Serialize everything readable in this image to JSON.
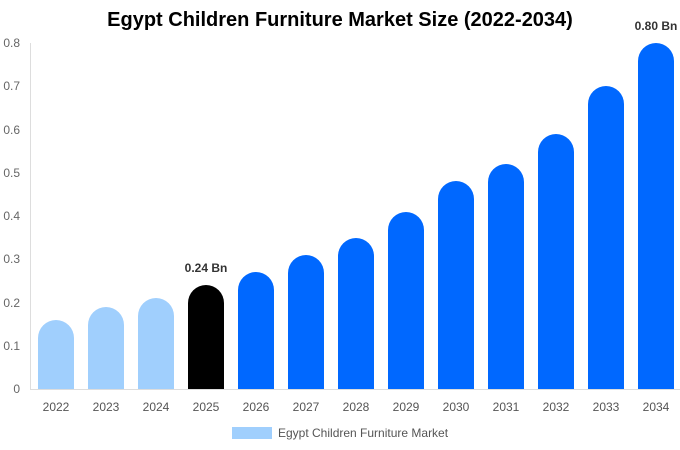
{
  "chart_data": {
    "type": "bar",
    "title": "Egypt Children Furniture Market Size (2022-2034)",
    "xlabel": "",
    "ylabel": "",
    "ylim": [
      0,
      0.8
    ],
    "yticks": [
      "0",
      "0.1",
      "0.2",
      "0.3",
      "0.4",
      "0.5",
      "0.6",
      "0.7",
      "0.8"
    ],
    "grid": false,
    "legend_position": "bottom",
    "categories": [
      "2022",
      "2023",
      "2024",
      "2025",
      "2026",
      "2027",
      "2028",
      "2029",
      "2030",
      "2031",
      "2032",
      "2033",
      "2034"
    ],
    "series": [
      {
        "name": "Egypt Children Furniture Market",
        "values": [
          0.16,
          0.19,
          0.21,
          0.24,
          0.27,
          0.31,
          0.35,
          0.41,
          0.48,
          0.52,
          0.59,
          0.7,
          0.8
        ]
      }
    ],
    "bar_colors": [
      "#a0cffd",
      "#a0cffd",
      "#a0cffd",
      "#000000",
      "#0068ff",
      "#0068ff",
      "#0068ff",
      "#0068ff",
      "#0068ff",
      "#0068ff",
      "#0068ff",
      "#0068ff",
      "#0068ff"
    ],
    "annotations": [
      {
        "category": "2025",
        "text": "0.24 Bn"
      },
      {
        "category": "2034",
        "text": "0.80 Bn"
      }
    ]
  },
  "legend": {
    "label": "Egypt Children Furniture Market",
    "color": "#a0cffd"
  }
}
